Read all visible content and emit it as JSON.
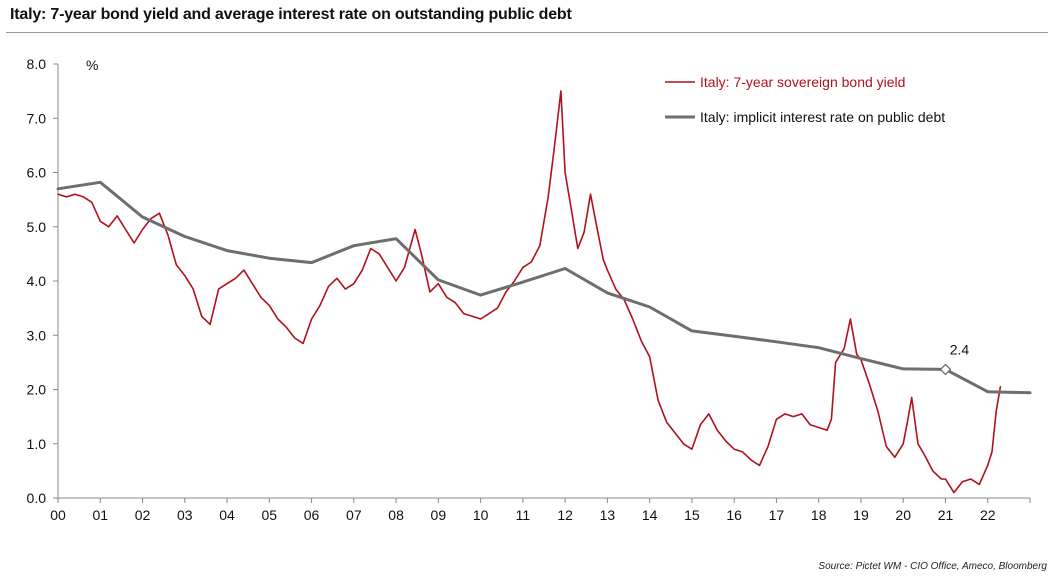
{
  "title": "Italy: 7-year bond yield and average interest rate on outstanding public debt",
  "source": "Source: Pictet WM - CIO Office, Ameco, Bloomberg",
  "chart_data": {
    "type": "line",
    "ylabel": "%",
    "ylim": [
      0,
      8
    ],
    "xlim": [
      2000.0,
      2023.0
    ],
    "y_ticks": [
      "0.0",
      "1.0",
      "2.0",
      "3.0",
      "4.0",
      "5.0",
      "6.0",
      "7.0",
      "8.0"
    ],
    "x_ticks": [
      "00",
      "01",
      "02",
      "03",
      "04",
      "05",
      "06",
      "07",
      "08",
      "09",
      "10",
      "11",
      "12",
      "13",
      "14",
      "15",
      "16",
      "17",
      "18",
      "19",
      "20",
      "21",
      "22"
    ],
    "grid": false,
    "legend_position": "top-right",
    "series": [
      {
        "name": "Italy: 7-year sovereign bond yield",
        "color": "#b0121b",
        "x": [
          2000.0,
          2000.2,
          2000.4,
          2000.6,
          2000.8,
          2001.0,
          2001.2,
          2001.4,
          2001.6,
          2001.8,
          2002.0,
          2002.2,
          2002.4,
          2002.6,
          2002.8,
          2003.0,
          2003.2,
          2003.4,
          2003.6,
          2003.8,
          2004.0,
          2004.2,
          2004.4,
          2004.6,
          2004.8,
          2005.0,
          2005.2,
          2005.4,
          2005.6,
          2005.8,
          2006.0,
          2006.2,
          2006.4,
          2006.6,
          2006.8,
          2007.0,
          2007.2,
          2007.4,
          2007.6,
          2007.8,
          2008.0,
          2008.2,
          2008.45,
          2008.6,
          2008.8,
          2009.0,
          2009.2,
          2009.4,
          2009.6,
          2009.8,
          2010.0,
          2010.2,
          2010.4,
          2010.6,
          2010.8,
          2011.0,
          2011.2,
          2011.4,
          2011.6,
          2011.75,
          2011.9,
          2012.0,
          2012.15,
          2012.3,
          2012.45,
          2012.6,
          2012.75,
          2012.9,
          2013.0,
          2013.2,
          2013.4,
          2013.6,
          2013.8,
          2014.0,
          2014.2,
          2014.4,
          2014.6,
          2014.8,
          2015.0,
          2015.2,
          2015.4,
          2015.6,
          2015.8,
          2016.0,
          2016.2,
          2016.4,
          2016.6,
          2016.8,
          2017.0,
          2017.2,
          2017.4,
          2017.6,
          2017.8,
          2018.0,
          2018.2,
          2018.3,
          2018.4,
          2018.6,
          2018.75,
          2018.9,
          2019.0,
          2019.2,
          2019.4,
          2019.6,
          2019.8,
          2020.0,
          2020.1,
          2020.2,
          2020.35,
          2020.5,
          2020.7,
          2020.9,
          2021.0,
          2021.2,
          2021.4,
          2021.6,
          2021.8,
          2022.0,
          2022.1,
          2022.2,
          2022.3
        ],
        "y": [
          5.6,
          5.55,
          5.6,
          5.55,
          5.45,
          5.1,
          5.0,
          5.2,
          4.95,
          4.7,
          4.95,
          5.15,
          5.25,
          4.85,
          4.3,
          4.1,
          3.85,
          3.35,
          3.2,
          3.85,
          3.95,
          4.05,
          4.2,
          3.95,
          3.7,
          3.55,
          3.3,
          3.15,
          2.95,
          2.85,
          3.3,
          3.55,
          3.9,
          4.05,
          3.85,
          3.95,
          4.2,
          4.6,
          4.5,
          4.25,
          4.0,
          4.25,
          4.95,
          4.5,
          3.8,
          3.95,
          3.7,
          3.6,
          3.4,
          3.35,
          3.3,
          3.4,
          3.5,
          3.8,
          4.0,
          4.25,
          4.35,
          4.65,
          5.55,
          6.5,
          7.5,
          6.0,
          5.3,
          4.6,
          4.9,
          5.6,
          5.0,
          4.4,
          4.2,
          3.85,
          3.65,
          3.3,
          2.9,
          2.6,
          1.8,
          1.4,
          1.2,
          1.0,
          0.9,
          1.35,
          1.55,
          1.25,
          1.05,
          0.9,
          0.85,
          0.7,
          0.6,
          0.95,
          1.45,
          1.55,
          1.5,
          1.55,
          1.35,
          1.3,
          1.25,
          1.45,
          2.5,
          2.75,
          3.3,
          2.65,
          2.55,
          2.1,
          1.6,
          0.95,
          0.75,
          1.0,
          1.4,
          1.85,
          1.0,
          0.8,
          0.5,
          0.35,
          0.35,
          0.1,
          0.3,
          0.35,
          0.25,
          0.6,
          0.85,
          1.6,
          2.05
        ]
      },
      {
        "name": "Italy: implicit interest rate on public debt",
        "color": "#6e6e6e",
        "x": [
          2000.0,
          2001.0,
          2002.0,
          2003.0,
          2004.0,
          2005.0,
          2006.0,
          2007.0,
          2008.0,
          2009.0,
          2010.0,
          2011.0,
          2012.0,
          2013.0,
          2014.0,
          2015.0,
          2016.0,
          2017.0,
          2018.0,
          2019.0,
          2020.0,
          2021.0,
          2022.0,
          2023.0
        ],
        "y": [
          5.7,
          5.82,
          5.18,
          4.82,
          4.56,
          4.42,
          4.34,
          4.65,
          4.78,
          4.02,
          3.74,
          3.98,
          4.23,
          3.78,
          3.52,
          3.08,
          2.98,
          2.88,
          2.77,
          2.57,
          2.38,
          2.37,
          1.96,
          1.94
        ]
      }
    ],
    "annotations": [
      {
        "label": "2.4",
        "x": 2021.0,
        "y": 2.37,
        "series": "Italy: implicit interest rate on public debt"
      }
    ]
  }
}
